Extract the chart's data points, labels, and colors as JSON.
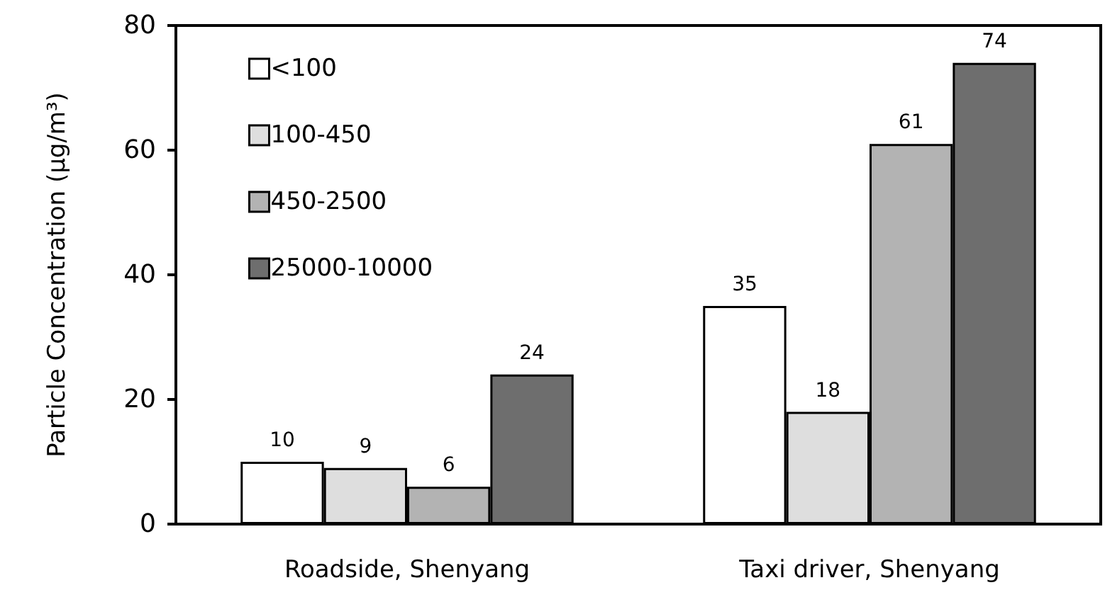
{
  "chart_data": {
    "type": "bar",
    "ylabel": "Particle Concentration (µg/m³)",
    "categories": [
      "Roadside, Shenyang",
      "Taxi driver, Shenyang"
    ],
    "series": [
      {
        "name": "<100",
        "color": "#ffffff",
        "values": [
          10,
          35
        ]
      },
      {
        "name": "100-450",
        "color": "#dedede",
        "values": [
          9,
          18
        ]
      },
      {
        "name": "450-2500",
        "color": "#b3b3b3",
        "values": [
          6,
          61
        ]
      },
      {
        "name": "25000-10000",
        "color": "#6e6e6e",
        "values": [
          24,
          74
        ]
      }
    ],
    "ylim": [
      0,
      80
    ],
    "yticks": [
      0,
      20,
      40,
      60,
      80
    ],
    "grid": false,
    "legend": "top left",
    "data_labels": true
  }
}
